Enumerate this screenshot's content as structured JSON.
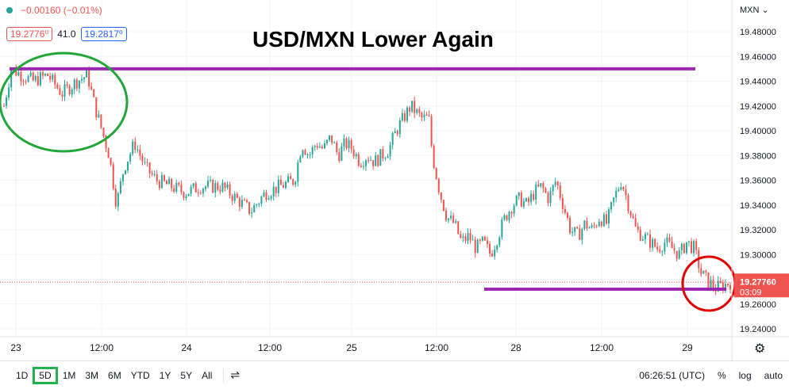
{
  "header": {
    "change": "−0.00160 (−0.01%)",
    "bid": "19.2776⁰",
    "spread": "41.0",
    "ask": "19.2817⁰"
  },
  "title": "USD/MXN Lower Again",
  "currency_label": "MXN ⌄",
  "toolbar": {
    "timeframes": [
      "1D",
      "5D",
      "1M",
      "3M",
      "6M",
      "YTD",
      "1Y",
      "5Y",
      "All"
    ],
    "active": "5D",
    "time": "06:26:51 (UTC)",
    "percent": "%",
    "log": "log",
    "auto": "auto"
  },
  "colors": {
    "up": "#26a69a",
    "down": "#ef5350",
    "level": "#9c27b0",
    "green_circle": "#22a63a",
    "red_circle": "#e00000",
    "price_tag": "#ef5350"
  },
  "chart_data": {
    "type": "candlestick",
    "title": "USD/MXN Lower Again",
    "y_ticks": [
      "19.48000",
      "19.46000",
      "19.44000",
      "19.42000",
      "19.40000",
      "19.38000",
      "19.36000",
      "19.34000",
      "19.32000",
      "19.30000",
      "19.28000",
      "19.26000",
      "19.24000"
    ],
    "x_ticks": [
      "23",
      "12:00",
      "24",
      "12:00",
      "25",
      "12:00",
      "28",
      "12:00",
      "29"
    ],
    "ylim": [
      19.232,
      19.492
    ],
    "current_price": "19.27760",
    "countdown": "03:09",
    "resistance_level": 19.45,
    "support_level": 19.272,
    "path": [
      [
        0,
        19.42
      ],
      [
        0.01,
        19.45
      ],
      [
        0.04,
        19.44
      ],
      [
        0.06,
        19.445
      ],
      [
        0.08,
        19.43
      ],
      [
        0.1,
        19.44
      ],
      [
        0.115,
        19.445
      ],
      [
        0.125,
        19.42
      ],
      [
        0.135,
        19.4
      ],
      [
        0.145,
        19.38
      ],
      [
        0.155,
        19.34
      ],
      [
        0.165,
        19.37
      ],
      [
        0.18,
        19.39
      ],
      [
        0.195,
        19.37
      ],
      [
        0.21,
        19.36
      ],
      [
        0.23,
        19.355
      ],
      [
        0.25,
        19.35
      ],
      [
        0.27,
        19.355
      ],
      [
        0.3,
        19.355
      ],
      [
        0.32,
        19.345
      ],
      [
        0.34,
        19.335
      ],
      [
        0.36,
        19.35
      ],
      [
        0.38,
        19.355
      ],
      [
        0.4,
        19.36
      ],
      [
        0.41,
        19.39
      ],
      [
        0.42,
        19.38
      ],
      [
        0.43,
        19.39
      ],
      [
        0.44,
        19.385
      ],
      [
        0.45,
        19.395
      ],
      [
        0.46,
        19.38
      ],
      [
        0.47,
        19.39
      ],
      [
        0.48,
        19.385
      ],
      [
        0.49,
        19.375
      ],
      [
        0.5,
        19.38
      ],
      [
        0.51,
        19.375
      ],
      [
        0.52,
        19.38
      ],
      [
        0.53,
        19.385
      ],
      [
        0.54,
        19.4
      ],
      [
        0.55,
        19.41
      ],
      [
        0.56,
        19.42
      ],
      [
        0.575,
        19.41
      ],
      [
        0.585,
        19.41
      ],
      [
        0.59,
        19.38
      ],
      [
        0.6,
        19.35
      ],
      [
        0.61,
        19.33
      ],
      [
        0.62,
        19.325
      ],
      [
        0.63,
        19.31
      ],
      [
        0.64,
        19.315
      ],
      [
        0.65,
        19.305
      ],
      [
        0.66,
        19.31
      ],
      [
        0.67,
        19.3
      ],
      [
        0.68,
        19.315
      ],
      [
        0.69,
        19.33
      ],
      [
        0.7,
        19.34
      ],
      [
        0.71,
        19.345
      ],
      [
        0.72,
        19.34
      ],
      [
        0.73,
        19.35
      ],
      [
        0.74,
        19.355
      ],
      [
        0.75,
        19.345
      ],
      [
        0.76,
        19.36
      ],
      [
        0.77,
        19.34
      ],
      [
        0.78,
        19.32
      ],
      [
        0.79,
        19.315
      ],
      [
        0.8,
        19.325
      ],
      [
        0.81,
        19.32
      ],
      [
        0.82,
        19.33
      ],
      [
        0.83,
        19.325
      ],
      [
        0.84,
        19.345
      ],
      [
        0.85,
        19.36
      ],
      [
        0.86,
        19.34
      ],
      [
        0.87,
        19.32
      ],
      [
        0.88,
        19.315
      ],
      [
        0.89,
        19.31
      ],
      [
        0.9,
        19.305
      ],
      [
        0.91,
        19.31
      ],
      [
        0.92,
        19.305
      ],
      [
        0.93,
        19.3
      ],
      [
        0.94,
        19.31
      ],
      [
        0.95,
        19.305
      ],
      [
        0.955,
        19.295
      ],
      [
        0.96,
        19.285
      ],
      [
        0.97,
        19.278
      ],
      [
        0.98,
        19.273
      ],
      [
        0.99,
        19.275
      ],
      [
        1.0,
        19.2776
      ]
    ]
  }
}
